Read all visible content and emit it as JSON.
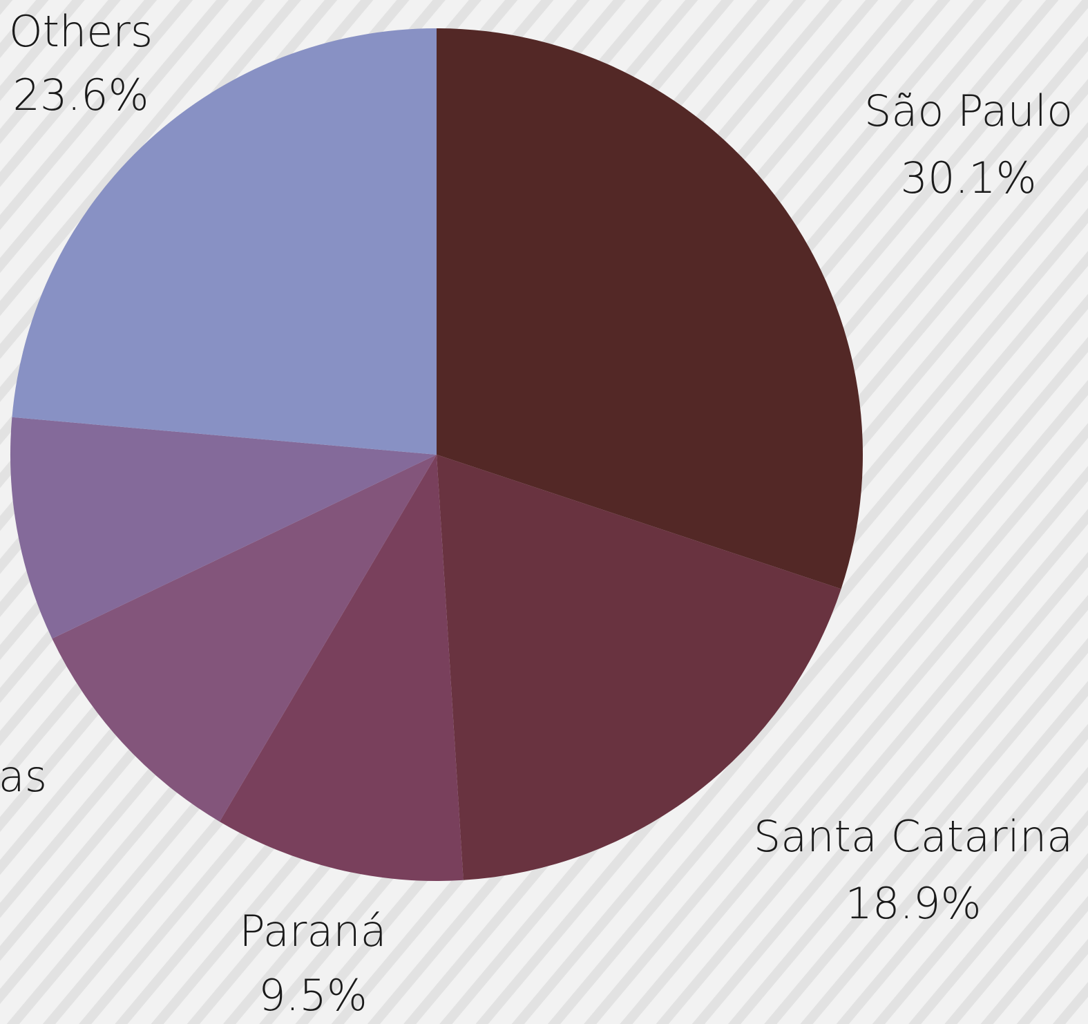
{
  "chart_data": {
    "type": "pie",
    "categories": [
      "São Paulo",
      "Santa Catarina",
      "Paraná",
      "as",
      null,
      "Others"
    ],
    "values": [
      30.1,
      18.9,
      9.5,
      9.4,
      8.5,
      23.6
    ],
    "value_labels": [
      "30.1%",
      "18.9%",
      "9.5%",
      null,
      null,
      "23.6%"
    ],
    "colors": [
      "#532826",
      "#693340",
      "#79405c",
      "#83557b",
      "#846a9a",
      "#8891c4"
    ]
  }
}
